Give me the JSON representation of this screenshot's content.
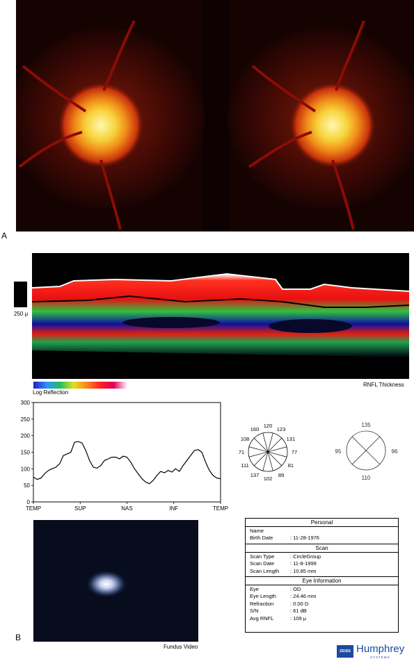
{
  "panel_labels": {
    "a": "A",
    "b": "B"
  },
  "oct": {
    "scale_label": "250 μ",
    "log_reflection_label": "Log Reflection",
    "rnfl_label": "RNFL Thickness"
  },
  "chart_data": {
    "type": "line",
    "title": "",
    "xlabel": "",
    "ylabel": "",
    "x_ticks": [
      "TEMP",
      "SUP",
      "NAS",
      "INF",
      "TEMP"
    ],
    "y_ticks": [
      0,
      50,
      100,
      150,
      200,
      250,
      300
    ],
    "ylim": [
      0,
      300
    ],
    "grid": false,
    "series": [
      {
        "values": [
          75,
          68,
          72,
          85,
          95,
          100,
          105,
          115,
          140,
          145,
          150,
          180,
          182,
          178,
          155,
          125,
          105,
          102,
          110,
          125,
          130,
          135,
          135,
          130,
          138,
          135,
          120,
          100,
          85,
          70,
          60,
          55,
          65,
          80,
          92,
          88,
          95,
          90,
          100,
          92,
          110,
          125,
          140,
          155,
          158,
          150,
          120,
          95,
          80,
          72,
          70
        ]
      }
    ]
  },
  "clock_hours": {
    "values": [
      "120",
      "123",
      "131",
      "77",
      "81",
      "89",
      "102",
      "137",
      "111",
      "71",
      "108",
      "160"
    ]
  },
  "quadrants": {
    "sup": "135",
    "nas": "96",
    "inf": "110",
    "temp": "95"
  },
  "fundus_video": {
    "label": "Fundus Video"
  },
  "info": {
    "personal_header": "Personal",
    "name_label": "Name",
    "name_value": "",
    "birth_label": "Birth Date",
    "birth_value": ": 11-28-1976",
    "scan_header": "Scan",
    "scan_type_label": "Scan Type",
    "scan_type_value": ": CircleGroup",
    "scan_date_label": "Scan Date",
    "scan_date_value": ": 11-8-1999",
    "scan_length_label": "Scan Length",
    "scan_length_value": ": 10.85 mm",
    "eye_header": "Eye Information",
    "eye_label": "Eye",
    "eye_value": ": OD",
    "eye_length_label": "Eye Length",
    "eye_length_value": ": 24.46 mm",
    "refraction_label": "Refraction",
    "refraction_value": ": 0.00 D",
    "sn_label": "S/N",
    "sn_value": ":  61 dB",
    "avg_rnfl_label": "Avg RNFL",
    "avg_rnfl_value": ":  109 μ"
  },
  "logo": {
    "brand": "ZEISS",
    "name": "Humphrey",
    "sub": "SYSTEMS"
  }
}
